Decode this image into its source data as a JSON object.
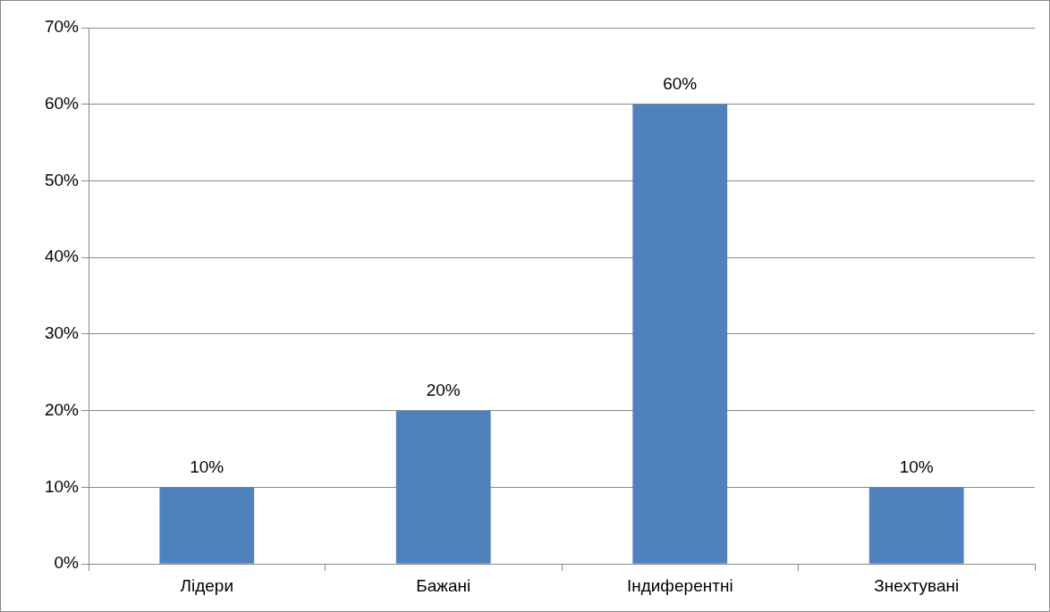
{
  "chart_data": {
    "type": "bar",
    "categories": [
      "Лідери",
      "Бажані",
      "Індиферентні",
      "Знехтувані"
    ],
    "values": [
      10,
      20,
      60,
      10
    ],
    "color": "#4f81bd",
    "value_labels": [
      "10%",
      "20%",
      "60%",
      "10%"
    ],
    "ylim": [
      0,
      70
    ],
    "yticks": [
      {
        "value": 0,
        "label": "0%"
      },
      {
        "value": 10,
        "label": "10%"
      },
      {
        "value": 20,
        "label": "20%"
      },
      {
        "value": 30,
        "label": "30%"
      },
      {
        "value": 40,
        "label": "40%"
      },
      {
        "value": 50,
        "label": "50%"
      },
      {
        "value": 60,
        "label": "60%"
      },
      {
        "value": 70,
        "label": "70%"
      }
    ],
    "grid": "y",
    "legend": false
  }
}
